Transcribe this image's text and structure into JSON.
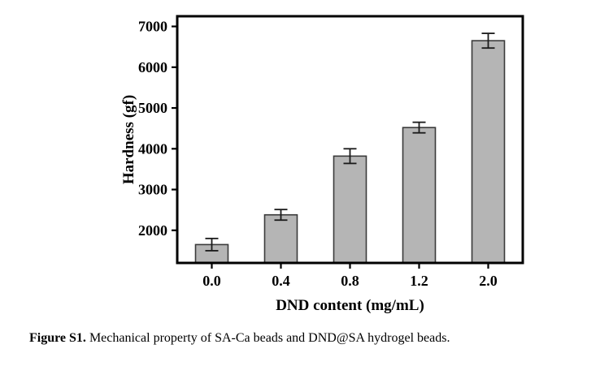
{
  "caption": {
    "label": "Figure S1.",
    "text": " Mechanical property of SA-Ca beads and DND@SA hydrogel beads."
  },
  "chart_data": {
    "type": "bar",
    "title": "",
    "xlabel": "DND content (mg/mL)",
    "ylabel": "Hardness (gf)",
    "categories": [
      "0.0",
      "0.4",
      "0.8",
      "1.2",
      "2.0"
    ],
    "values": [
      1650,
      2380,
      3820,
      4520,
      6650
    ],
    "errors": [
      150,
      130,
      180,
      130,
      180
    ],
    "yticks": [
      2000,
      3000,
      4000,
      5000,
      6000,
      7000
    ],
    "ylim": [
      1200,
      7250
    ],
    "grid": false,
    "legend": null,
    "bar_fill": "#b5b5b5",
    "bar_border": "#3a3a3a",
    "error_color": "#1a1a1a",
    "axis_color": "#000000"
  }
}
